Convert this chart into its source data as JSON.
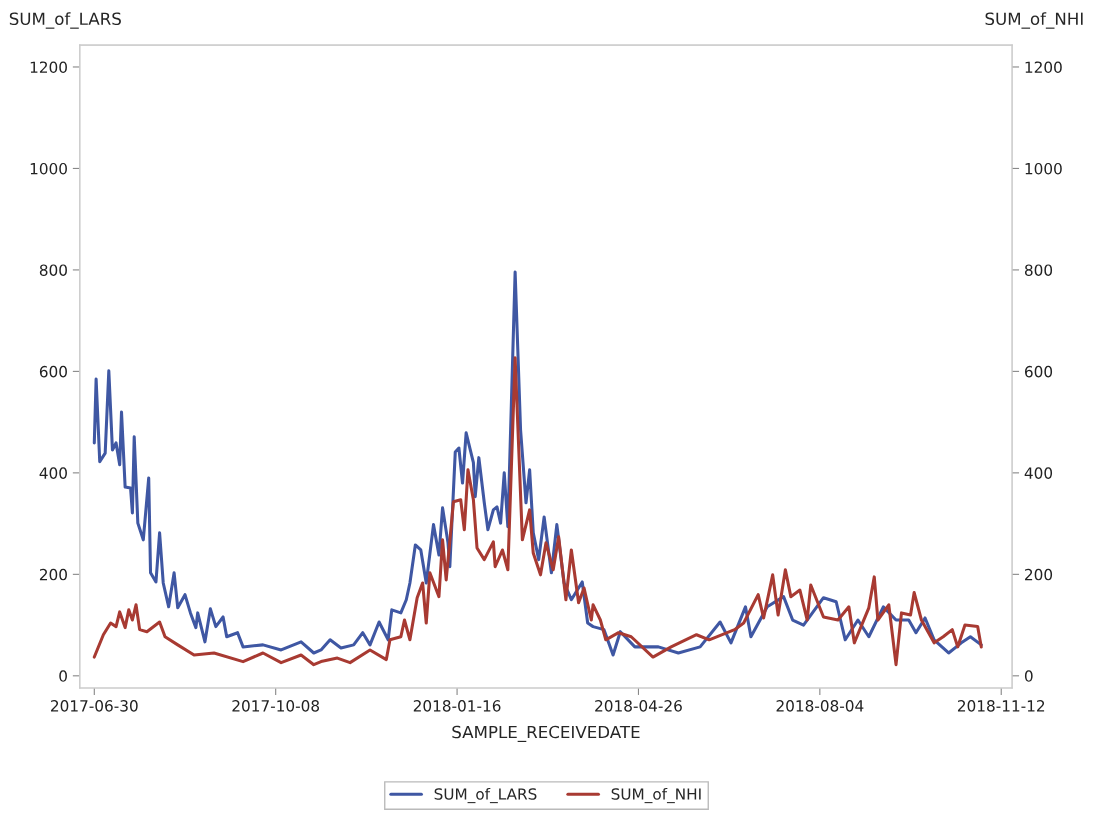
{
  "chart_data": {
    "type": "line",
    "xlabel": "SAMPLE_RECEIVEDATE",
    "ylabel": "SUM_of_LARS",
    "y2label": "SUM_of_NHI",
    "xlim": [
      "2017-06-22",
      "2018-11-18"
    ],
    "xticks": [
      "2017-06-30",
      "2017-10-08",
      "2018-01-16",
      "2018-04-26",
      "2018-08-04",
      "2018-11-12"
    ],
    "ylim": [
      -24,
      1243
    ],
    "yticks": [
      0,
      200,
      400,
      600,
      800,
      1000,
      1200
    ],
    "y2lim": [
      -24,
      1243
    ],
    "y2ticks": [
      0,
      200,
      400,
      600,
      800,
      1000,
      1200
    ],
    "grid": false,
    "legend": "bottom",
    "line_style": "solid",
    "marker": "none",
    "series": [
      {
        "name": "SUM_of_LARS",
        "color": "#3f57a3",
        "axis": "y",
        "x": [
          "2017-06-30",
          "2017-07-01",
          "2017-07-03",
          "2017-07-06",
          "2017-07-08",
          "2017-07-10",
          "2017-07-12",
          "2017-07-14",
          "2017-07-15",
          "2017-07-17",
          "2017-07-20",
          "2017-07-21",
          "2017-07-22",
          "2017-07-24",
          "2017-07-27",
          "2017-07-30",
          "2017-07-31",
          "2017-08-03",
          "2017-08-05",
          "2017-08-07",
          "2017-08-10",
          "2017-08-13",
          "2017-08-15",
          "2017-08-19",
          "2017-08-22",
          "2017-08-25",
          "2017-08-26",
          "2017-08-30",
          "2017-09-02",
          "2017-09-05",
          "2017-09-09",
          "2017-09-11",
          "2017-09-17",
          "2017-09-20",
          "2017-10-01",
          "2017-10-11",
          "2017-10-22",
          "2017-10-29",
          "2017-11-02",
          "2017-11-07",
          "2017-11-13",
          "2017-11-20",
          "2017-11-25",
          "2017-11-29",
          "2017-12-04",
          "2017-12-09",
          "2017-12-11",
          "2017-12-16",
          "2017-12-19",
          "2017-12-21",
          "2017-12-24",
          "2017-12-27",
          "2017-12-30",
          "2018-01-03",
          "2018-01-06",
          "2018-01-08",
          "2018-01-11",
          "2018-01-12",
          "2018-01-15",
          "2018-01-17",
          "2018-01-19",
          "2018-01-21",
          "2018-01-25",
          "2018-01-26",
          "2018-01-28",
          "2018-01-31",
          "2018-02-02",
          "2018-02-05",
          "2018-02-07",
          "2018-02-09",
          "2018-02-11",
          "2018-02-13",
          "2018-02-17",
          "2018-02-20",
          "2018-02-23",
          "2018-02-25",
          "2018-02-27",
          "2018-03-02",
          "2018-03-05",
          "2018-03-09",
          "2018-03-12",
          "2018-03-16",
          "2018-03-20",
          "2018-03-26",
          "2018-03-29",
          "2018-04-01",
          "2018-04-07",
          "2018-04-12",
          "2018-04-16",
          "2018-04-24",
          "2018-05-07",
          "2018-05-18",
          "2018-05-30",
          "2018-06-10",
          "2018-06-16",
          "2018-06-24",
          "2018-06-27",
          "2018-07-06",
          "2018-07-15",
          "2018-07-20",
          "2018-07-26",
          "2018-08-06",
          "2018-08-13",
          "2018-08-18",
          "2018-08-25",
          "2018-08-31",
          "2018-09-08",
          "2018-09-15",
          "2018-09-22",
          "2018-09-26",
          "2018-10-01",
          "2018-10-06",
          "2018-10-14",
          "2018-10-21",
          "2018-10-26",
          "2018-11-01"
        ],
        "values": [
          459,
          585,
          422,
          439,
          601,
          445,
          459,
          416,
          520,
          372,
          370,
          321,
          471,
          301,
          268,
          390,
          203,
          185,
          282,
          183,
          136,
          203,
          134,
          160,
          124,
          95,
          124,
          67,
          132,
          97,
          116,
          77,
          85,
          57,
          61,
          51,
          67,
          45,
          51,
          71,
          55,
          61,
          85,
          61,
          106,
          71,
          130,
          124,
          150,
          183,
          258,
          248,
          183,
          298,
          238,
          331,
          262,
          215,
          441,
          449,
          380,
          479,
          420,
          353,
          430,
          341,
          288,
          327,
          333,
          301,
          400,
          294,
          796,
          485,
          341,
          406,
          282,
          229,
          313,
          203,
          298,
          183,
          150,
          185,
          104,
          97,
          91,
          41,
          87,
          57,
          57,
          45,
          57,
          106,
          65,
          136,
          77,
          136,
          156,
          110,
          100,
          154,
          146,
          71,
          110,
          77,
          136,
          110,
          110,
          85,
          114,
          71,
          45,
          65,
          77,
          61
        ]
      },
      {
        "name": "SUM_of_NHI",
        "color": "#a83a32",
        "axis": "y2",
        "x": [
          "2017-06-30",
          "2017-07-05",
          "2017-07-09",
          "2017-07-12",
          "2017-07-14",
          "2017-07-17",
          "2017-07-19",
          "2017-07-21",
          "2017-07-23",
          "2017-07-25",
          "2017-07-29",
          "2017-08-05",
          "2017-08-08",
          "2017-08-15",
          "2017-08-24",
          "2017-09-04",
          "2017-09-20",
          "2017-10-01",
          "2017-10-11",
          "2017-10-22",
          "2017-10-29",
          "2017-11-02",
          "2017-11-11",
          "2017-11-18",
          "2017-11-29",
          "2017-12-08",
          "2017-12-10",
          "2017-12-16",
          "2017-12-18",
          "2017-12-21",
          "2017-12-25",
          "2017-12-28",
          "2017-12-30",
          "2018-01-01",
          "2018-01-06",
          "2018-01-08",
          "2018-01-10",
          "2018-01-14",
          "2018-01-18",
          "2018-01-20",
          "2018-01-22",
          "2018-01-25",
          "2018-01-27",
          "2018-01-31",
          "2018-02-05",
          "2018-02-06",
          "2018-02-10",
          "2018-02-13",
          "2018-02-17",
          "2018-02-21",
          "2018-02-25",
          "2018-02-27",
          "2018-03-03",
          "2018-03-06",
          "2018-03-10",
          "2018-03-13",
          "2018-03-17",
          "2018-03-20",
          "2018-03-24",
          "2018-03-27",
          "2018-03-31",
          "2018-04-01",
          "2018-04-05",
          "2018-04-08",
          "2018-04-15",
          "2018-04-22",
          "2018-05-04",
          "2018-05-14",
          "2018-05-28",
          "2018-06-04",
          "2018-06-18",
          "2018-06-23",
          "2018-07-01",
          "2018-07-04",
          "2018-07-09",
          "2018-07-12",
          "2018-07-16",
          "2018-07-19",
          "2018-07-24",
          "2018-07-28",
          "2018-07-30",
          "2018-08-06",
          "2018-08-14",
          "2018-08-20",
          "2018-08-23",
          "2018-08-31",
          "2018-09-03",
          "2018-09-05",
          "2018-09-11",
          "2018-09-15",
          "2018-09-18",
          "2018-09-23",
          "2018-09-25",
          "2018-09-29",
          "2018-10-06",
          "2018-10-11",
          "2018-10-16",
          "2018-10-19",
          "2018-10-23",
          "2018-10-30",
          "2018-11-01"
        ],
        "values": [
          37,
          81,
          104,
          97,
          126,
          95,
          130,
          110,
          140,
          91,
          87,
          106,
          77,
          61,
          41,
          45,
          28,
          45,
          26,
          41,
          22,
          28,
          35,
          26,
          51,
          32,
          71,
          77,
          110,
          71,
          154,
          183,
          104,
          203,
          156,
          268,
          189,
          343,
          347,
          288,
          406,
          347,
          252,
          229,
          264,
          215,
          248,
          209,
          627,
          268,
          327,
          242,
          199,
          262,
          209,
          274,
          150,
          248,
          144,
          173,
          110,
          140,
          110,
          71,
          85,
          77,
          37,
          57,
          81,
          71,
          91,
          104,
          160,
          114,
          199,
          120,
          209,
          156,
          169,
          110,
          179,
          116,
          110,
          136,
          65,
          134,
          195,
          110,
          140,
          22,
          124,
          120,
          164,
          110,
          65,
          77,
          91,
          57,
          100,
          97,
          57
        ]
      }
    ]
  }
}
